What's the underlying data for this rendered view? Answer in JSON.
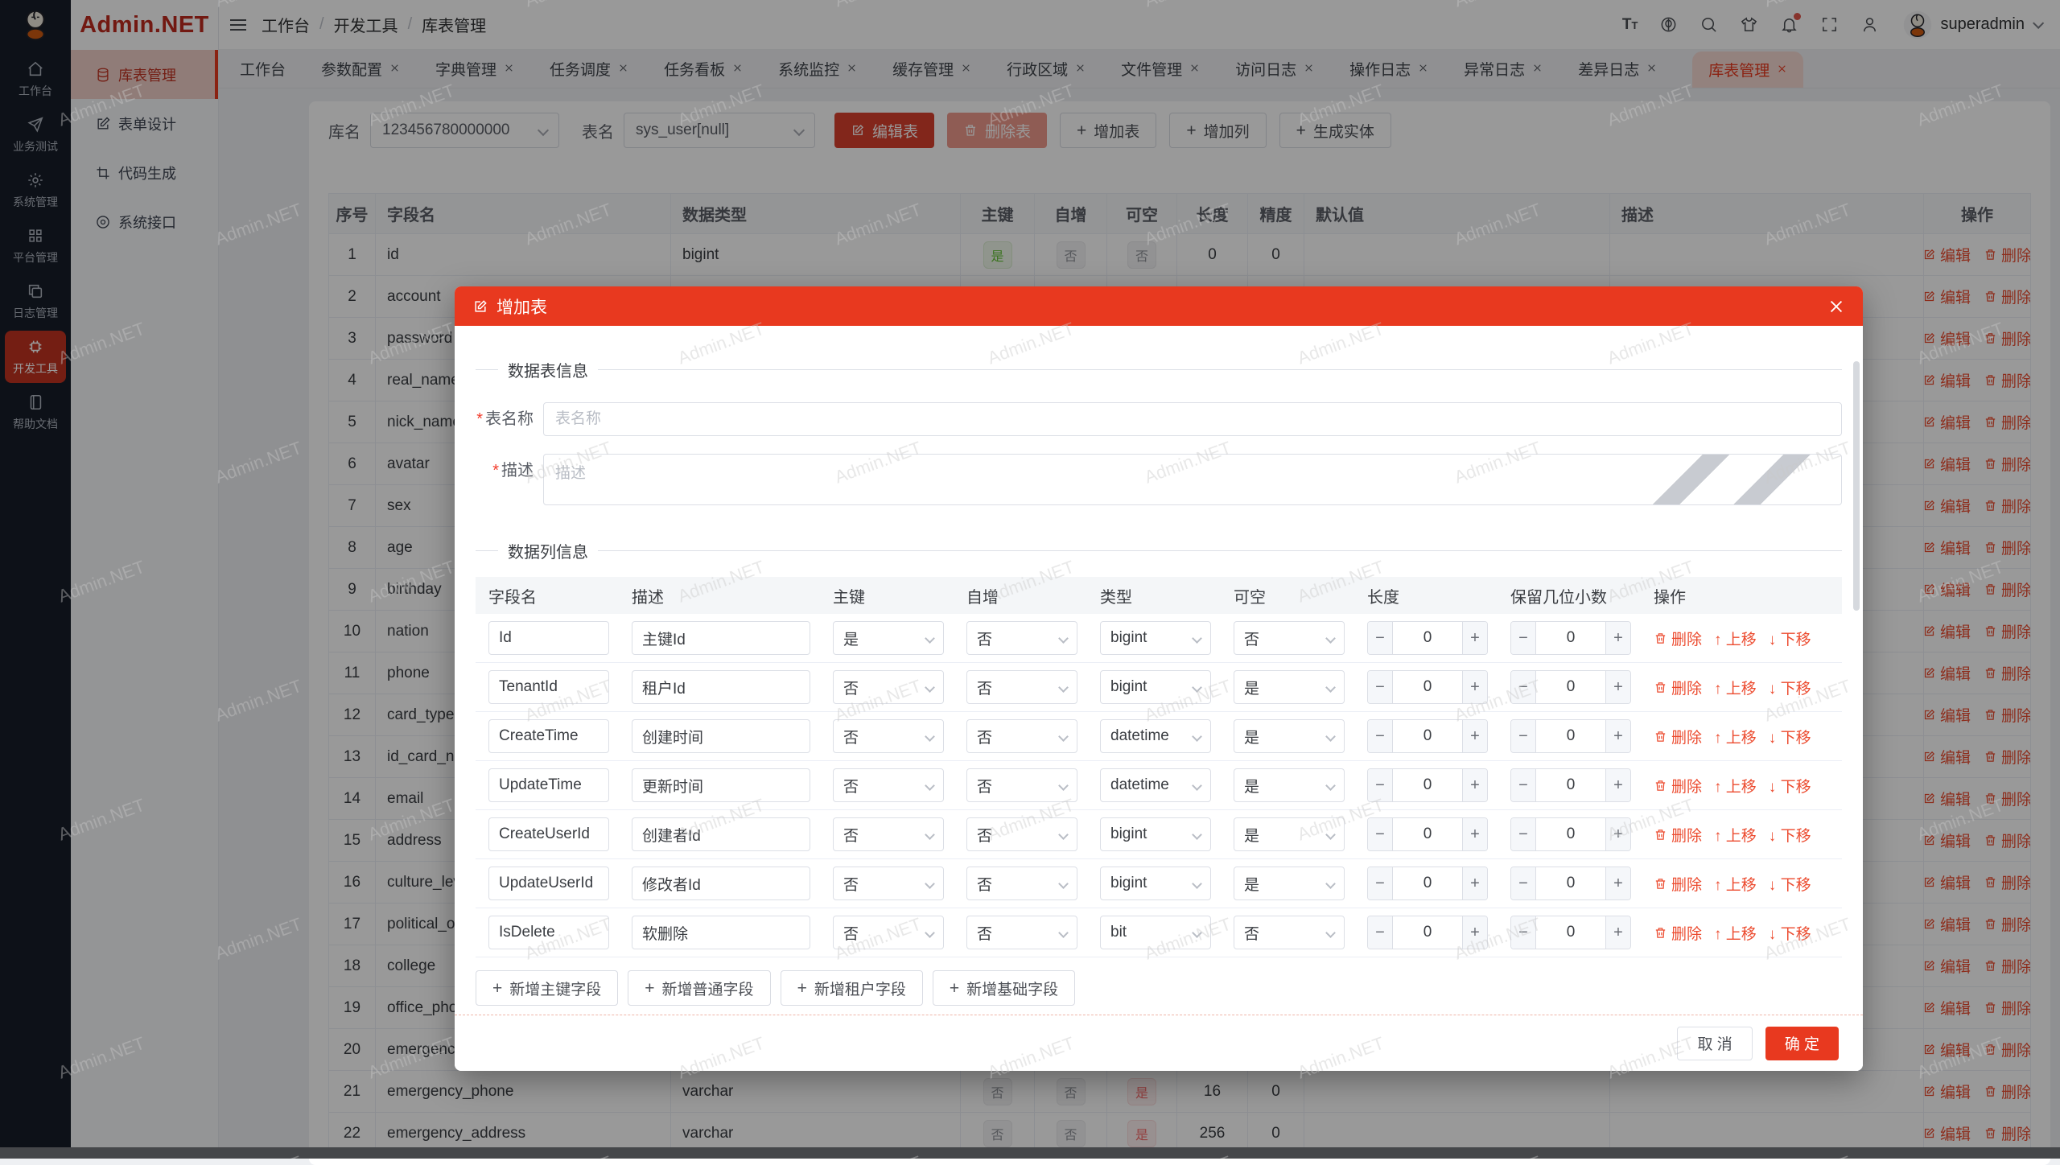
{
  "brand": {
    "name": "Admin.NET",
    "accent": "#e8391f"
  },
  "rail": {
    "items": [
      {
        "icon": "home",
        "label": "工作台",
        "active": false
      },
      {
        "icon": "send",
        "label": "业务测试",
        "active": false
      },
      {
        "icon": "gear",
        "label": "系统管理",
        "active": false
      },
      {
        "icon": "grid",
        "label": "平台管理",
        "active": false
      },
      {
        "icon": "copy",
        "label": "日志管理",
        "active": false
      },
      {
        "icon": "chip",
        "label": "开发工具",
        "active": true
      },
      {
        "icon": "book",
        "label": "帮助文档",
        "active": false
      }
    ]
  },
  "sidebar": {
    "items": [
      {
        "icon": "database",
        "label": "库表管理",
        "active": true
      },
      {
        "icon": "form",
        "label": "表单设计",
        "active": false
      },
      {
        "icon": "code",
        "label": "代码生成",
        "active": false
      },
      {
        "icon": "api",
        "label": "系统接口",
        "active": false
      }
    ]
  },
  "topbar": {
    "breadcrumb": [
      "工作台",
      "开发工具",
      "库表管理"
    ],
    "icons": [
      "font-size",
      "language",
      "search",
      "theme",
      "notification",
      "fullscreen",
      "profile"
    ],
    "notification_badge": true,
    "username": "superadmin"
  },
  "tabs": {
    "items": [
      {
        "label": "工作台",
        "closable": false,
        "active": false
      },
      {
        "label": "参数配置",
        "closable": true,
        "active": false
      },
      {
        "label": "字典管理",
        "closable": true,
        "active": false
      },
      {
        "label": "任务调度",
        "closable": true,
        "active": false
      },
      {
        "label": "任务看板",
        "closable": true,
        "active": false
      },
      {
        "label": "系统监控",
        "closable": true,
        "active": false
      },
      {
        "label": "缓存管理",
        "closable": true,
        "active": false
      },
      {
        "label": "行政区域",
        "closable": true,
        "active": false
      },
      {
        "label": "文件管理",
        "closable": true,
        "active": false
      },
      {
        "label": "访问日志",
        "closable": true,
        "active": false
      },
      {
        "label": "操作日志",
        "closable": true,
        "active": false
      },
      {
        "label": "异常日志",
        "closable": true,
        "active": false
      },
      {
        "label": "差异日志",
        "closable": true,
        "active": false
      },
      {
        "label": "库表管理",
        "closable": true,
        "active": true
      }
    ]
  },
  "toolbar": {
    "db_label": "库名",
    "db_value": "123456780000000",
    "table_label": "表名",
    "table_value": "sys_user[null]",
    "edit_table": "编辑表",
    "delete_table": "删除表",
    "add_table": "增加表",
    "add_column": "增加列",
    "gen_entity": "生成实体"
  },
  "grid": {
    "headers": [
      "序号",
      "字段名",
      "数据类型",
      "主键",
      "自增",
      "可空",
      "长度",
      "精度",
      "默认值",
      "描述",
      "操作"
    ],
    "edit_label": "编辑",
    "delete_label": "删除",
    "rows": [
      {
        "no": "1",
        "name": "id",
        "type": "bigint",
        "pk": "是",
        "inc": "否",
        "nullable": "否",
        "len": "0",
        "prec": "0"
      },
      {
        "no": "2",
        "name": "account"
      },
      {
        "no": "3",
        "name": "password"
      },
      {
        "no": "4",
        "name": "real_name"
      },
      {
        "no": "5",
        "name": "nick_name"
      },
      {
        "no": "6",
        "name": "avatar"
      },
      {
        "no": "7",
        "name": "sex"
      },
      {
        "no": "8",
        "name": "age"
      },
      {
        "no": "9",
        "name": "birthday"
      },
      {
        "no": "10",
        "name": "nation"
      },
      {
        "no": "11",
        "name": "phone"
      },
      {
        "no": "12",
        "name": "card_type"
      },
      {
        "no": "13",
        "name": "id_card_nu"
      },
      {
        "no": "14",
        "name": "email"
      },
      {
        "no": "15",
        "name": "address"
      },
      {
        "no": "16",
        "name": "culture_lev"
      },
      {
        "no": "17",
        "name": "political_ou"
      },
      {
        "no": "18",
        "name": "college"
      },
      {
        "no": "19",
        "name": "office_phon"
      },
      {
        "no": "20",
        "name": "emergency"
      },
      {
        "no": "21",
        "name": "emergency_phone",
        "type": "varchar",
        "pk": "否",
        "inc": "否",
        "nullable": "是",
        "len": "16",
        "prec": "0"
      },
      {
        "no": "22",
        "name": "emergency_address",
        "type": "varchar",
        "pk": "否",
        "inc": "否",
        "nullable": "是",
        "len": "256",
        "prec": "0"
      }
    ]
  },
  "modal": {
    "title": "增加表",
    "section_table": "数据表信息",
    "name_label": "表名称",
    "name_placeholder": "表名称",
    "desc_label": "描述",
    "desc_placeholder": "描述",
    "section_columns": "数据列信息",
    "col_headers": [
      "字段名",
      "描述",
      "主键",
      "自增",
      "类型",
      "可空",
      "长度",
      "保留几位小数",
      "操作"
    ],
    "row_actions": {
      "delete": "删除",
      "up": "上移",
      "down": "下移"
    },
    "rows": [
      {
        "name": "Id",
        "desc": "主键Id",
        "pk": "是",
        "inc": "否",
        "type": "bigint",
        "nullable": "否",
        "len": "0",
        "dec": "0"
      },
      {
        "name": "TenantId",
        "desc": "租户Id",
        "pk": "否",
        "inc": "否",
        "type": "bigint",
        "nullable": "是",
        "len": "0",
        "dec": "0"
      },
      {
        "name": "CreateTime",
        "desc": "创建时间",
        "pk": "否",
        "inc": "否",
        "type": "datetime",
        "nullable": "是",
        "len": "0",
        "dec": "0"
      },
      {
        "name": "UpdateTime",
        "desc": "更新时间",
        "pk": "否",
        "inc": "否",
        "type": "datetime",
        "nullable": "是",
        "len": "0",
        "dec": "0"
      },
      {
        "name": "CreateUserId",
        "desc": "创建者Id",
        "pk": "否",
        "inc": "否",
        "type": "bigint",
        "nullable": "是",
        "len": "0",
        "dec": "0"
      },
      {
        "name": "UpdateUserId",
        "desc": "修改者Id",
        "pk": "否",
        "inc": "否",
        "type": "bigint",
        "nullable": "是",
        "len": "0",
        "dec": "0"
      },
      {
        "name": "IsDelete",
        "desc": "软删除",
        "pk": "否",
        "inc": "否",
        "type": "bit",
        "nullable": "否",
        "len": "0",
        "dec": "0"
      }
    ],
    "add_buttons": [
      "新增主键字段",
      "新增普通字段",
      "新增租户字段",
      "新增基础字段"
    ],
    "cancel": "取 消",
    "confirm": "确 定"
  },
  "watermark": "Admin.NET",
  "colors": {
    "accent": "#e8391f",
    "success": "#67c23a",
    "danger": "#f56c6c",
    "info": "#909399"
  }
}
